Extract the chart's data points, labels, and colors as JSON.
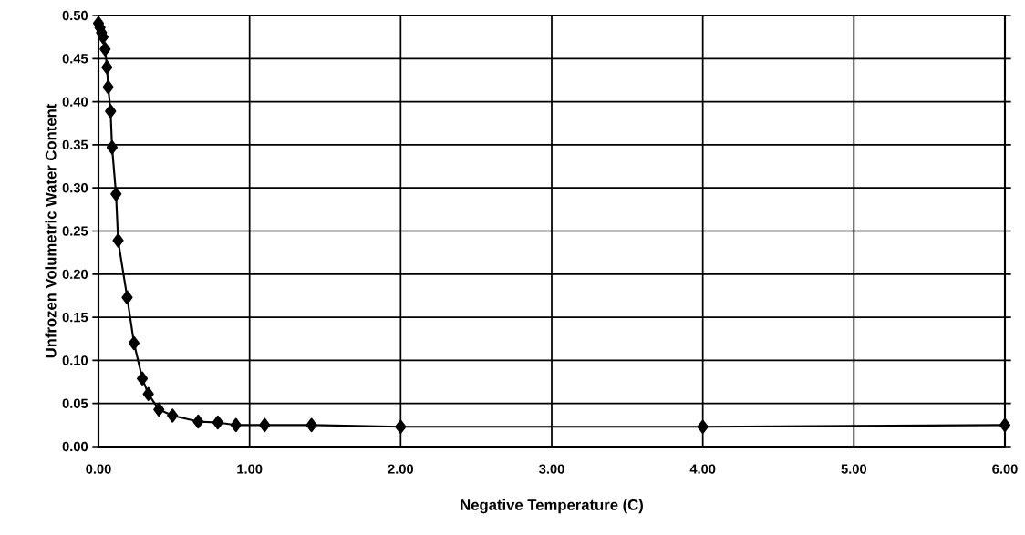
{
  "chart_data": {
    "type": "line",
    "xlabel": "Negative Temperature (C)",
    "ylabel": "Unfrozen Volumetric Water Content",
    "x": [
      0.0,
      0.01,
      0.02,
      0.03,
      0.044,
      0.056,
      0.064,
      0.08,
      0.09,
      0.116,
      0.13,
      0.19,
      0.235,
      0.29,
      0.33,
      0.4,
      0.49,
      0.66,
      0.79,
      0.91,
      1.1,
      1.41,
      2.0,
      4.0,
      6.0
    ],
    "series": [
      {
        "color": "#000000",
        "values": [
          0.491,
          0.486,
          0.48,
          0.475,
          0.461,
          0.44,
          0.417,
          0.389,
          0.347,
          0.293,
          0.239,
          0.173,
          0.12,
          0.079,
          0.061,
          0.043,
          0.036,
          0.029,
          0.028,
          0.025,
          0.025,
          0.025,
          0.023,
          0.023,
          0.025
        ]
      }
    ],
    "xlim": [
      0,
      6
    ],
    "xticks": [
      {
        "value": 0,
        "label": "0.00"
      },
      {
        "value": 1,
        "label": "1.00"
      },
      {
        "value": 2,
        "label": "2.00"
      },
      {
        "value": 3,
        "label": "3.00"
      },
      {
        "value": 4,
        "label": "4.00"
      },
      {
        "value": 5,
        "label": "5.00"
      },
      {
        "value": 6,
        "label": "6.00"
      }
    ],
    "ylim": [
      0,
      0.5
    ],
    "yticks": [
      {
        "value": 0,
        "label": "0.00"
      },
      {
        "value": 0.05,
        "label": "0.05"
      },
      {
        "value": 0.1,
        "label": "0.10"
      },
      {
        "value": 0.15,
        "label": "0.15"
      },
      {
        "value": 0.2,
        "label": "0.20"
      },
      {
        "value": 0.25,
        "label": "0.25"
      },
      {
        "value": 0.3,
        "label": "0.30"
      },
      {
        "value": 0.35,
        "label": "0.35"
      },
      {
        "value": 0.4,
        "label": "0.40"
      },
      {
        "value": 0.45,
        "label": "0.45"
      },
      {
        "value": 0.5,
        "label": "0.50"
      }
    ],
    "grid": true,
    "marker": "diamond",
    "line_style": "solid"
  }
}
